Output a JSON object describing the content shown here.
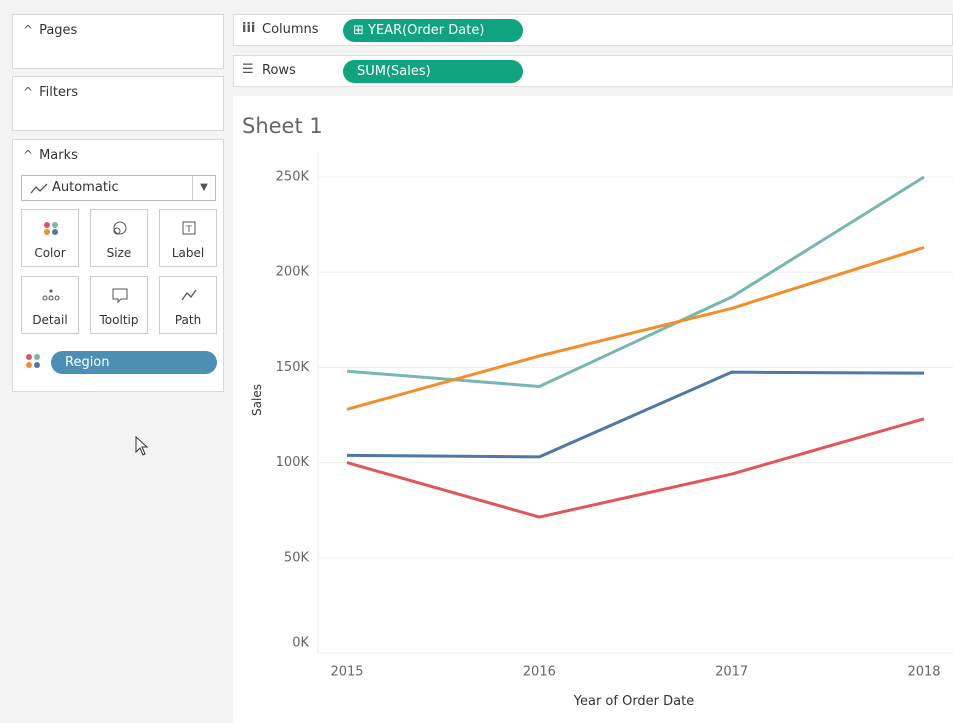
{
  "pages": {
    "title": "Pages"
  },
  "filters": {
    "title": "Filters"
  },
  "marks": {
    "title": "Marks",
    "mark_type": "Automatic",
    "buttons": [
      "Color",
      "Size",
      "Label",
      "Detail",
      "Tooltip",
      "Path"
    ],
    "pill": "Region"
  },
  "shelves": {
    "columns": {
      "label": "Columns",
      "pill": "YEAR(Order Date)"
    },
    "rows": {
      "label": "Rows",
      "pill": "SUM(Sales)"
    }
  },
  "sheet_title": "Sheet 1",
  "chart_data": {
    "type": "line",
    "x_label": "Year of Order Date",
    "y_label": "Sales",
    "categories": [
      "2015",
      "2016",
      "2017",
      "2018"
    ],
    "series": [
      {
        "color": "#76b7b2",
        "values": [
          148000,
          140000,
          187000,
          250000
        ]
      },
      {
        "color": "#f28e2b",
        "values": [
          128000,
          156000,
          181000,
          213000
        ]
      },
      {
        "color": "#4e79a7",
        "values": [
          103800,
          103000,
          147500,
          147000
        ]
      },
      {
        "color": "#e15759",
        "values": [
          100000,
          71400,
          94000,
          123000
        ]
      }
    ],
    "ylim": [
      0,
      260000
    ],
    "yticks": [
      {
        "value": 0,
        "label": "0K"
      },
      {
        "value": 50000,
        "label": "50K"
      },
      {
        "value": 100000,
        "label": "100K"
      },
      {
        "value": 150000,
        "label": "150K"
      },
      {
        "value": 200000,
        "label": "200K"
      },
      {
        "value": 250000,
        "label": "250K"
      }
    ],
    "grid": true
  }
}
